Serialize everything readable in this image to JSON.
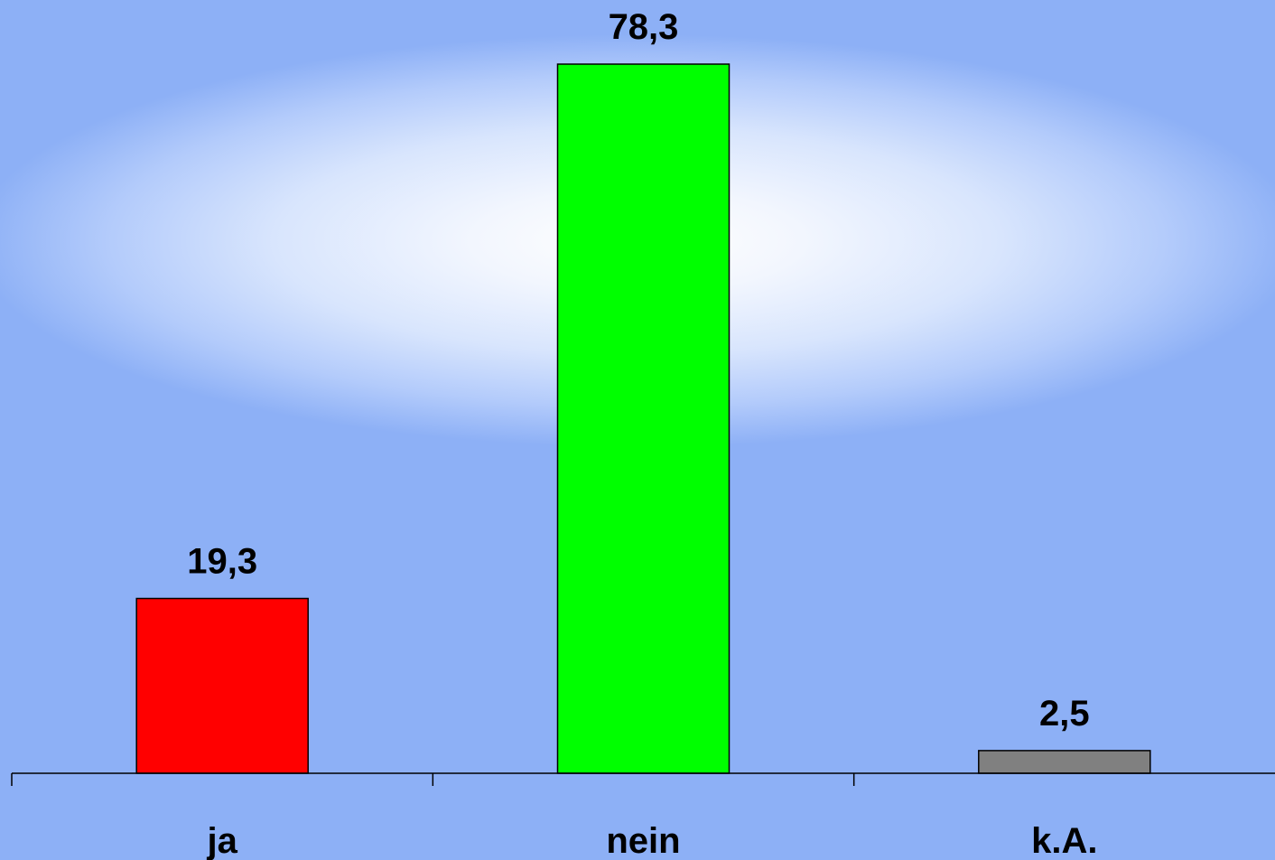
{
  "chart_data": {
    "type": "bar",
    "categories": [
      "ja",
      "nein",
      "k.A."
    ],
    "values": [
      19.3,
      78.3,
      2.5
    ],
    "value_labels": [
      "19,3",
      "78,3",
      "2,5"
    ],
    "colors": [
      "#ff0000",
      "#00ff00",
      "#808080"
    ],
    "ylim": [
      0,
      80
    ],
    "grid": false,
    "legend": "none",
    "title": "",
    "xlabel": "",
    "ylabel": ""
  }
}
